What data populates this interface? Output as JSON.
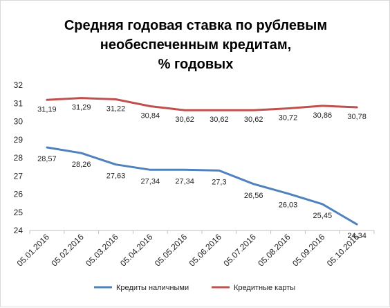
{
  "chart_data": {
    "type": "line",
    "title_lines": [
      "Средняя годовая ставка по рублевым",
      "необеспеченным кредитам,",
      "% годовых"
    ],
    "categories": [
      "05.01.2016",
      "05.02.2016",
      "05.03.2016",
      "05.04.2016",
      "05.05.2016",
      "05.06.2016",
      "05.07.2016",
      "05.08.2016",
      "05.09.2016",
      "05.10.2016"
    ],
    "ylim": [
      24,
      32
    ],
    "yticks": [
      24,
      25,
      26,
      27,
      28,
      29,
      30,
      31,
      32
    ],
    "grid": false,
    "legend_position": "bottom",
    "series": [
      {
        "name": "Кредиты наличными",
        "color": "#4f81bd",
        "values": [
          28.57,
          28.26,
          27.63,
          27.34,
          27.34,
          27.3,
          26.56,
          26.03,
          25.45,
          24.34
        ],
        "labels": [
          "28,57",
          "28,26",
          "27,63",
          "27,34",
          "27,34",
          "27,3",
          "26,56",
          "26,03",
          "25,45",
          "24,34"
        ]
      },
      {
        "name": "Кредитные карты",
        "color": "#c0504d",
        "values": [
          31.19,
          31.29,
          31.22,
          30.84,
          30.62,
          30.62,
          30.62,
          30.72,
          30.86,
          30.78
        ],
        "labels": [
          "31,19",
          "31,29",
          "31,22",
          "30,84",
          "30,62",
          "30,62",
          "30,62",
          "30,72",
          "30,86",
          "30,78"
        ]
      }
    ]
  }
}
